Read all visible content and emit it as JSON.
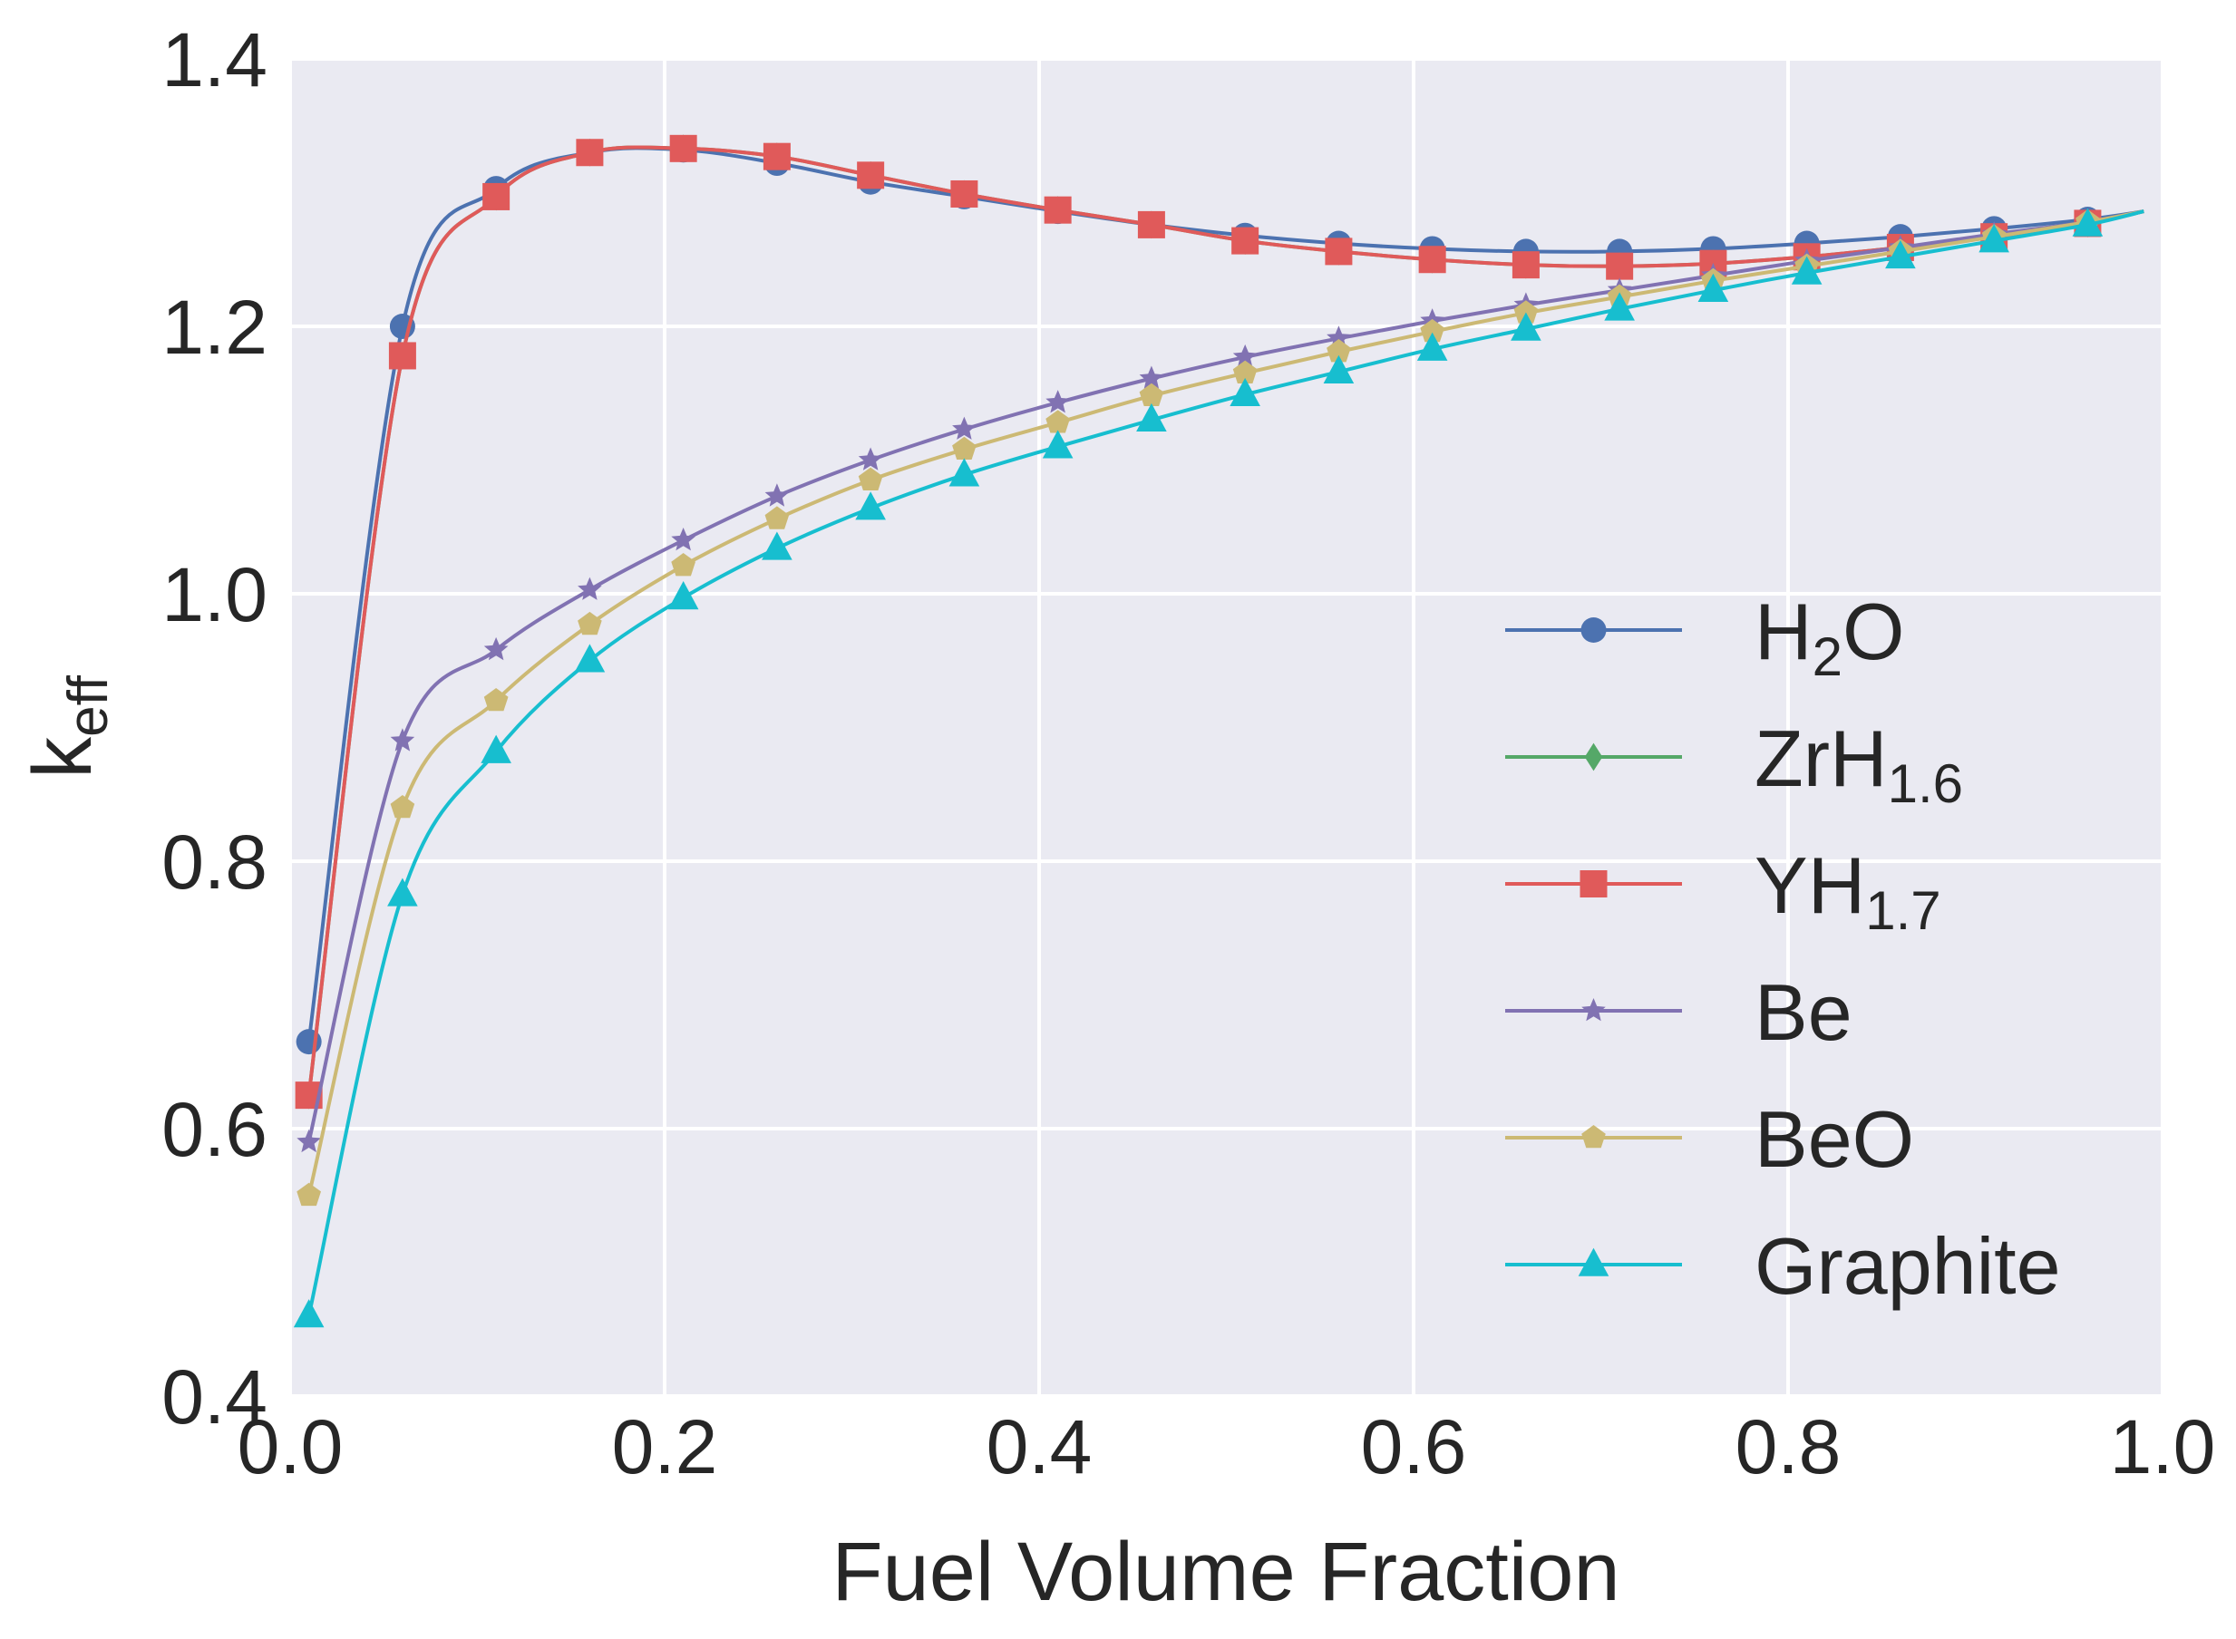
{
  "chart_data": {
    "type": "line",
    "title": "",
    "xlabel": "Fuel Volume Fraction",
    "ylabel": {
      "main": "k",
      "sub": "eff"
    },
    "xlim": [
      0.0,
      1.0
    ],
    "ylim": [
      0.4,
      1.4
    ],
    "xticks": [
      {
        "value": 0.0,
        "label": "0.0"
      },
      {
        "value": 0.2,
        "label": "0.2"
      },
      {
        "value": 0.4,
        "label": "0.4"
      },
      {
        "value": 0.6,
        "label": "0.6"
      },
      {
        "value": 0.8,
        "label": "0.8"
      },
      {
        "value": 1.0,
        "label": "1.0"
      }
    ],
    "yticks": [
      {
        "value": 0.4,
        "label": "0.4"
      },
      {
        "value": 0.6,
        "label": "0.6"
      },
      {
        "value": 0.8,
        "label": "0.8"
      },
      {
        "value": 1.0,
        "label": "1.0"
      },
      {
        "value": 1.2,
        "label": "1.2"
      },
      {
        "value": 1.4,
        "label": "1.4"
      }
    ],
    "grid": true,
    "legend_position": "lower-right",
    "x": [
      0.01,
      0.06,
      0.11,
      0.16,
      0.21,
      0.26,
      0.31,
      0.36,
      0.41,
      0.46,
      0.51,
      0.56,
      0.61,
      0.66,
      0.71,
      0.76,
      0.81,
      0.86,
      0.91,
      0.96,
      0.99
    ],
    "series": [
      {
        "name": "H2O",
        "label_main": "H",
        "label_sub": "2",
        "label_tail": "O",
        "color": "#4C72B0",
        "marker": "circle",
        "values": [
          0.665,
          1.2,
          1.303,
          1.33,
          1.332,
          1.322,
          1.308,
          1.297,
          1.286,
          1.276,
          1.268,
          1.262,
          1.258,
          1.256,
          1.256,
          1.258,
          1.262,
          1.267,
          1.273,
          1.28,
          1.286
        ]
      },
      {
        "name": "ZrH1.6",
        "label_main": "ZrH",
        "label_sub": "1.6",
        "label_tail": "",
        "color": "#55A868",
        "marker": "diamond",
        "values": [
          0.625,
          1.178,
          1.297,
          1.33,
          1.333,
          1.327,
          1.313,
          1.299,
          1.287,
          1.276,
          1.264,
          1.256,
          1.25,
          1.246,
          1.245,
          1.247,
          1.252,
          1.259,
          1.267,
          1.277,
          1.286
        ]
      },
      {
        "name": "YH1.7",
        "label_main": "YH",
        "label_sub": "1.7",
        "label_tail": "",
        "color": "#E05A5A",
        "marker": "square",
        "values": [
          0.625,
          1.178,
          1.297,
          1.33,
          1.333,
          1.327,
          1.313,
          1.299,
          1.287,
          1.276,
          1.264,
          1.256,
          1.25,
          1.246,
          1.245,
          1.247,
          1.252,
          1.259,
          1.267,
          1.277,
          1.286
        ]
      },
      {
        "name": "Be",
        "label_main": "Be",
        "label_sub": "",
        "label_tail": "",
        "color": "#8172B2",
        "marker": "star",
        "values": [
          0.59,
          0.89,
          0.958,
          1.003,
          1.04,
          1.073,
          1.1,
          1.123,
          1.143,
          1.161,
          1.177,
          1.191,
          1.204,
          1.216,
          1.227,
          1.238,
          1.249,
          1.259,
          1.269,
          1.278,
          1.286
        ]
      },
      {
        "name": "BeO",
        "label_main": "BeO",
        "label_sub": "",
        "label_tail": "",
        "color": "#CCB974",
        "marker": "pentagon",
        "values": [
          0.55,
          0.84,
          0.92,
          0.977,
          1.021,
          1.056,
          1.085,
          1.108,
          1.128,
          1.148,
          1.165,
          1.181,
          1.196,
          1.21,
          1.222,
          1.234,
          1.245,
          1.256,
          1.267,
          1.278,
          1.286
        ]
      },
      {
        "name": "Graphite",
        "label_main": "Graphite",
        "label_sub": "",
        "label_tail": "",
        "color": "#17BECF",
        "marker": "triangle",
        "values": [
          0.46,
          0.775,
          0.882,
          0.95,
          0.997,
          1.034,
          1.064,
          1.089,
          1.11,
          1.13,
          1.149,
          1.166,
          1.183,
          1.198,
          1.213,
          1.227,
          1.24,
          1.252,
          1.264,
          1.276,
          1.286
        ]
      }
    ]
  }
}
